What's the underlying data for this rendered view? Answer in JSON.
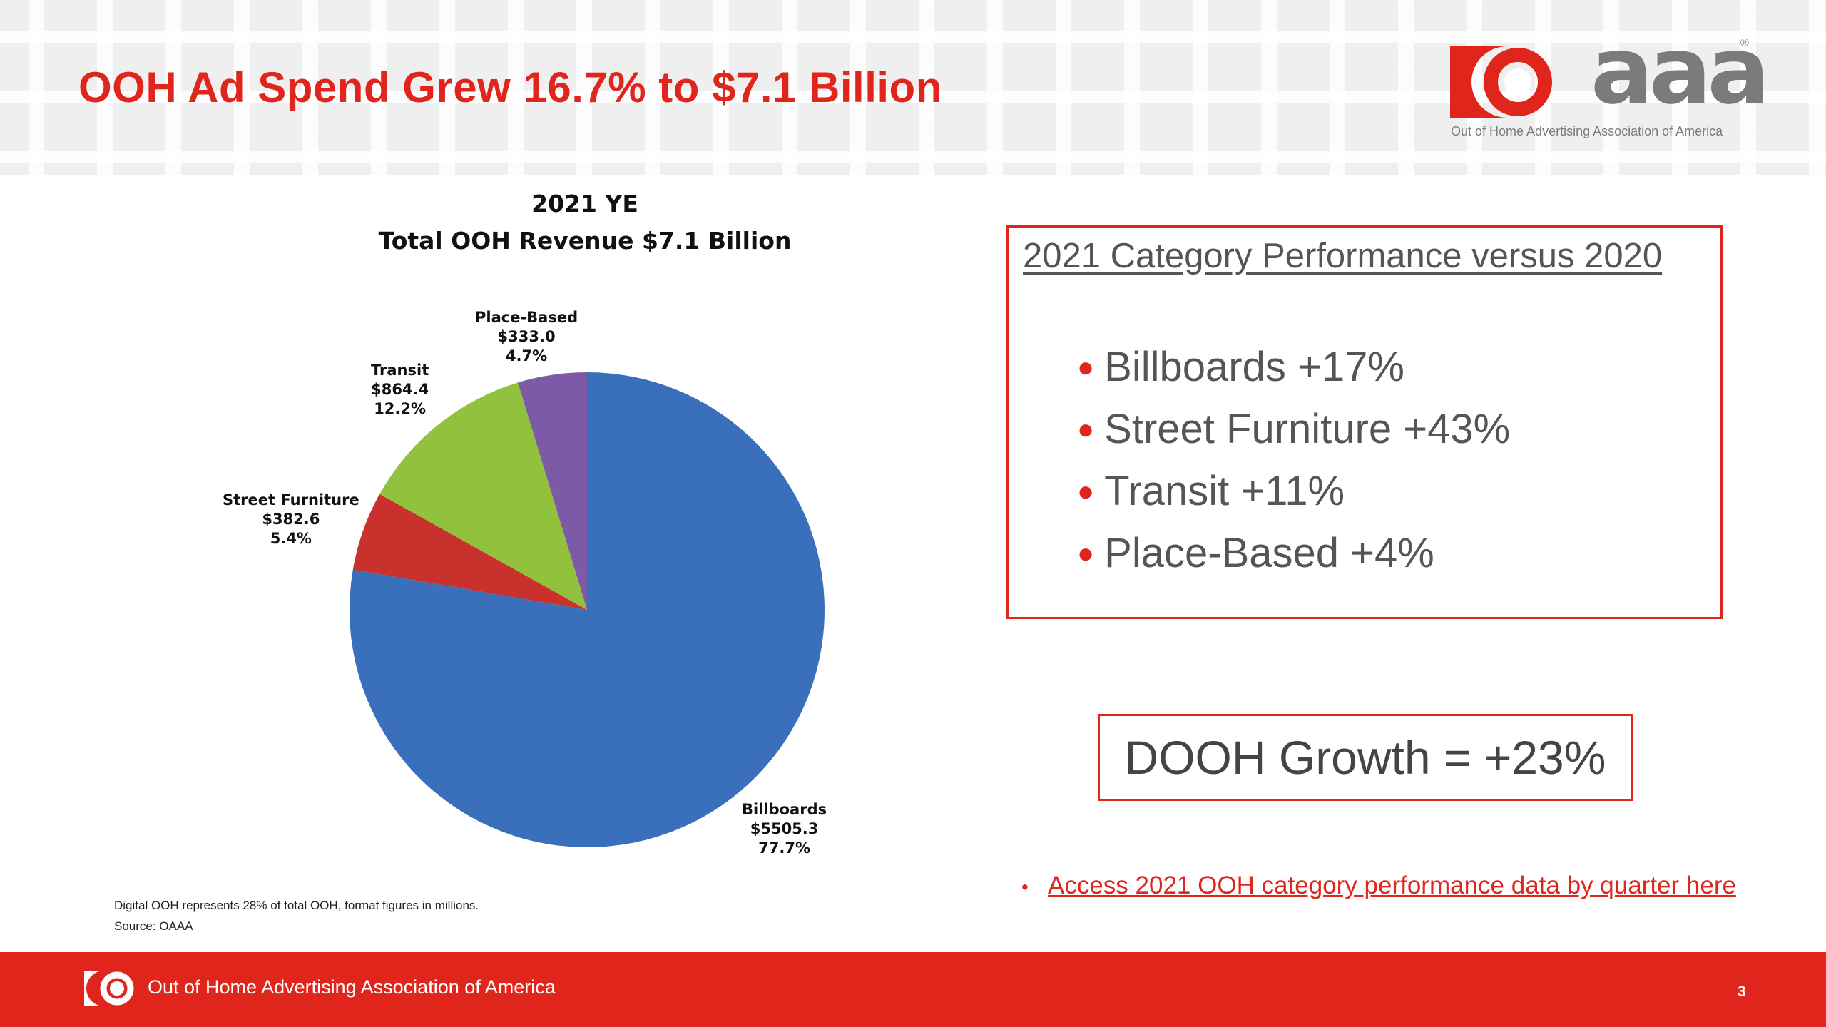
{
  "header": {
    "title": "OOH Ad Spend Grew 16.7% to $7.1 Billion",
    "logo": {
      "wordmark": "aaa",
      "registered": "®",
      "caption": "Out of Home Advertising Association of America"
    }
  },
  "chart_data": {
    "type": "pie",
    "title": "2021 YE",
    "subtitle": "Total OOH Revenue $7.1 Billion",
    "slices": [
      {
        "name": "Billboards",
        "value": 5505.3,
        "value_label": "$5505.3",
        "percent": 77.7,
        "percent_label": "77.7%",
        "color": "#3a6fbc"
      },
      {
        "name": "Street Furniture",
        "value": 382.6,
        "value_label": "$382.6",
        "percent": 5.4,
        "percent_label": "5.4%",
        "color": "#c8312c"
      },
      {
        "name": "Transit",
        "value": 864.4,
        "value_label": "$864.4",
        "percent": 12.2,
        "percent_label": "12.2%",
        "color": "#92c13d"
      },
      {
        "name": "Place-Based",
        "value": 333.0,
        "value_label": "$333.0",
        "percent": 4.7,
        "percent_label": "4.7%",
        "color": "#7d5aa6"
      }
    ],
    "notes": [
      "Digital OOH represents 28% of total OOH, format figures in millions.",
      "Source: OAAA"
    ]
  },
  "performance": {
    "heading": "2021 Category Performance versus 2020",
    "items": [
      "Billboards +17%",
      "Street Furniture +43%",
      "Transit +11%",
      "Place-Based +4%"
    ]
  },
  "dooh": {
    "text": "DOOH Growth = +23%"
  },
  "access_link": {
    "bullet": "•",
    "text": "Access 2021 OOH category performance data by quarter here"
  },
  "footer": {
    "org": "Out of Home Advertising Association of America",
    "page_number": "3"
  },
  "colors": {
    "brand_red": "#e0261c",
    "text_gray": "#555555"
  }
}
